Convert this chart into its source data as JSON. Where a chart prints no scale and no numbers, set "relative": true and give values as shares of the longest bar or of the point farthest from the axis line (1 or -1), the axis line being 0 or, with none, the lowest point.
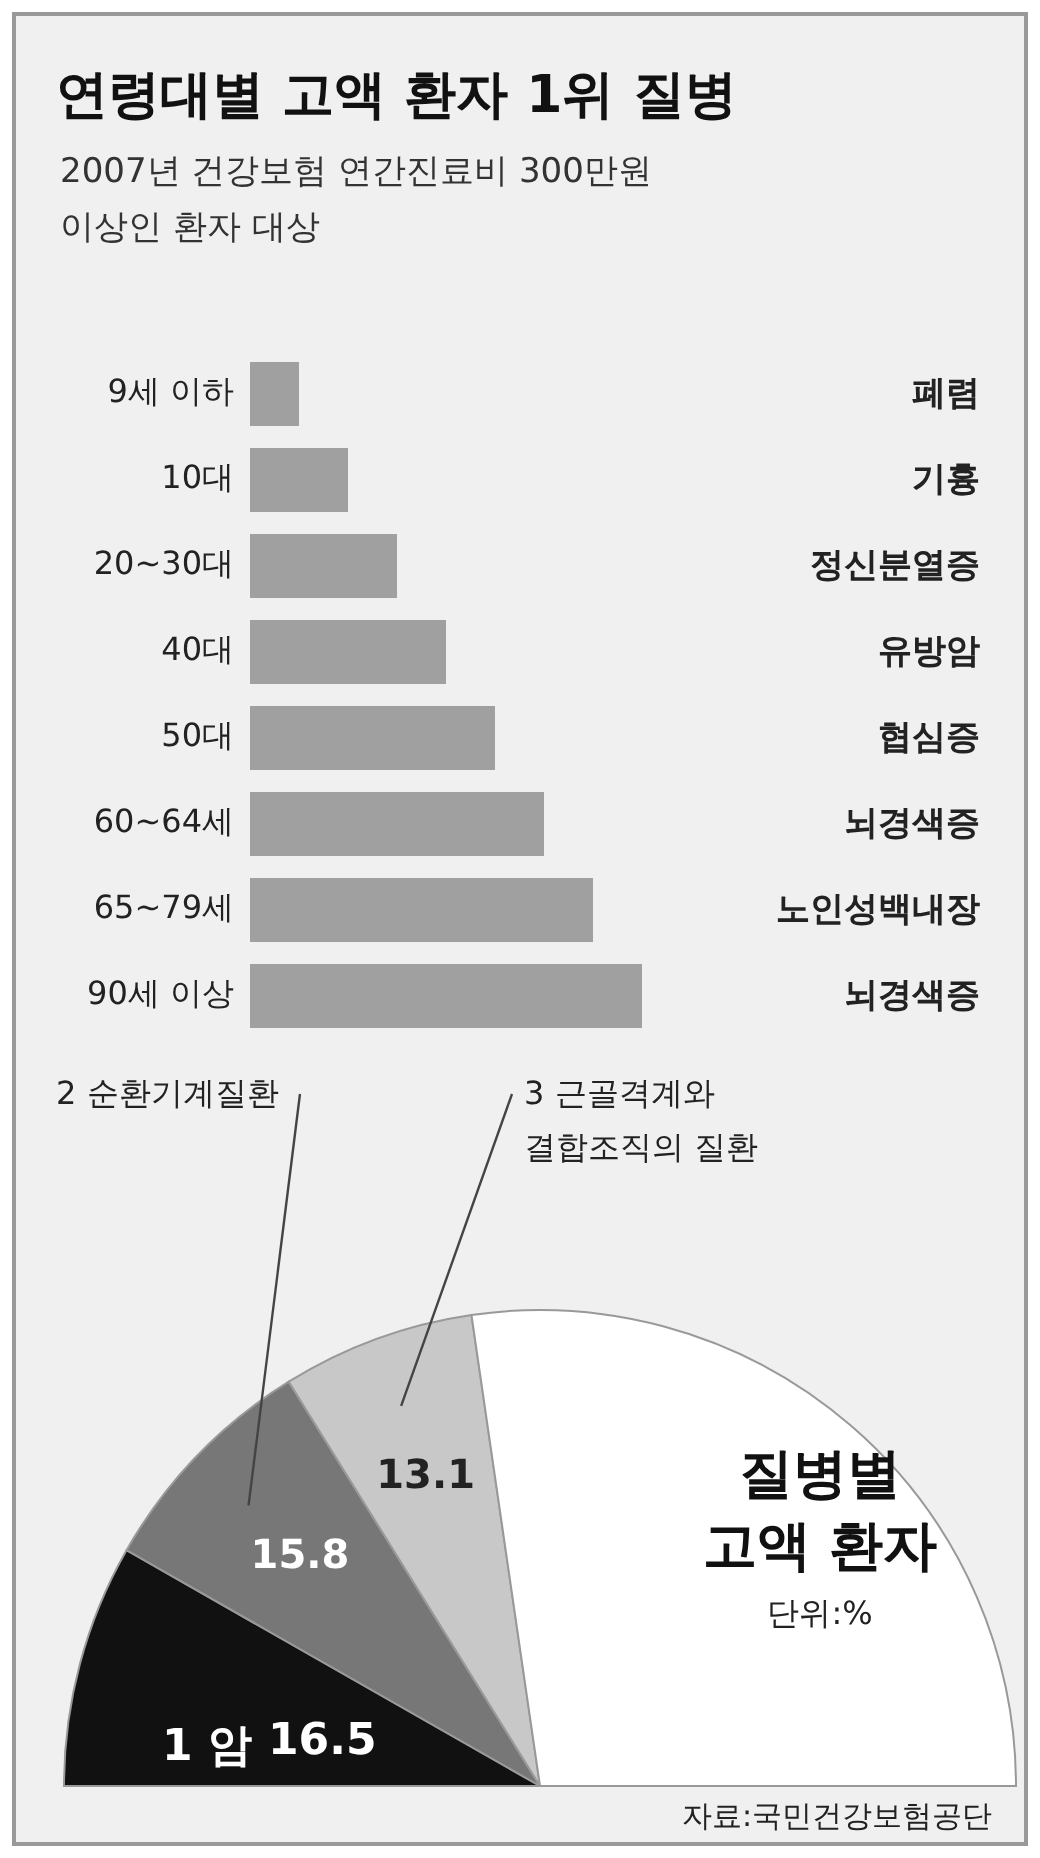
{
  "chart_data": [
    {
      "type": "bar",
      "orientation": "horizontal",
      "relative": true,
      "title": "연령대별 고액 환자 1위 질병",
      "subtitle": "2007년 건강보험 연간진료비 300만원\n이상인 환자 대상",
      "categories": [
        "9세 이하",
        "10대",
        "20~30대",
        "40대",
        "50대",
        "60~64세",
        "65~79세",
        "90세 이상"
      ],
      "values": [
        0.125,
        0.25,
        0.375,
        0.5,
        0.625,
        0.75,
        0.875,
        1
      ],
      "color": "#a0a0a0",
      "annotations": [
        "폐렴",
        "기흉",
        "정신분열증",
        "유방암",
        "협심증",
        "뇌경색증",
        "노인성백내장",
        "뇌경색증"
      ]
    },
    {
      "type": "pie",
      "title": "질병별\n고액 환자",
      "subtitle": "단위:%",
      "categories": [
        "1 암",
        "2 순환기계질환",
        "3 근골격계와\n결합조직의 질환",
        null
      ],
      "values": [
        16.5,
        15.8,
        13.1,
        54.6
      ],
      "colors": [
        "#111111",
        "#777777",
        "#c8c8c8",
        "#ffffff"
      ],
      "value_labels": [
        "16.5",
        "15.8",
        "13.1",
        null
      ],
      "annotations": [
        "자료:국민건강보험공단"
      ]
    }
  ]
}
